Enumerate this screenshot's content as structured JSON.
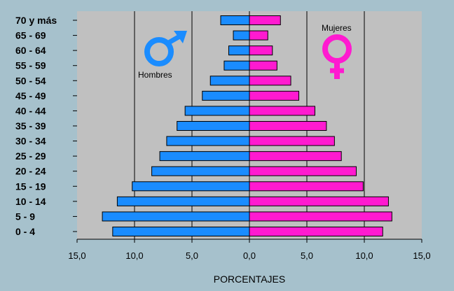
{
  "chart_data": {
    "type": "bar",
    "orientation": "horizontal",
    "subtype": "population-pyramid",
    "categories": [
      "0 - 4",
      "5 - 9",
      "10 - 14",
      "15 - 19",
      "20 - 24",
      "25 - 29",
      "30 - 34",
      "35 - 39",
      "40 - 44",
      "45 - 49",
      "50 - 54",
      "55 - 59",
      "60 - 64",
      "65 - 69",
      "70 y más"
    ],
    "series": [
      {
        "name": "Hombres",
        "side": "left",
        "color": "#1a8cff",
        "values": [
          11.9,
          12.8,
          11.5,
          10.2,
          8.5,
          7.8,
          7.2,
          6.3,
          5.6,
          4.1,
          3.4,
          2.2,
          1.8,
          1.4,
          2.5
        ]
      },
      {
        "name": "Mujeres",
        "side": "right",
        "color": "#ff1ad0",
        "values": [
          11.6,
          12.4,
          12.1,
          9.9,
          9.3,
          8.0,
          7.4,
          6.7,
          5.7,
          4.3,
          3.6,
          2.4,
          2.0,
          1.6,
          2.7
        ]
      }
    ],
    "xticks": [
      "15,0",
      "10,0",
      "5,0",
      "0,0",
      "5,0",
      "10,0",
      "15,0"
    ],
    "xlim": [
      -15,
      15
    ],
    "xlabel": "PORCENTAJES",
    "ylabel": "",
    "gridlines": [
      -10,
      -5,
      0,
      5,
      10
    ],
    "grid": true,
    "plot_background": "#c0c0c0",
    "legend": {
      "male_label": "Hombres",
      "female_label": "Mujeres",
      "male_icon": "male-symbol-icon",
      "female_icon": "female-symbol-icon"
    }
  }
}
